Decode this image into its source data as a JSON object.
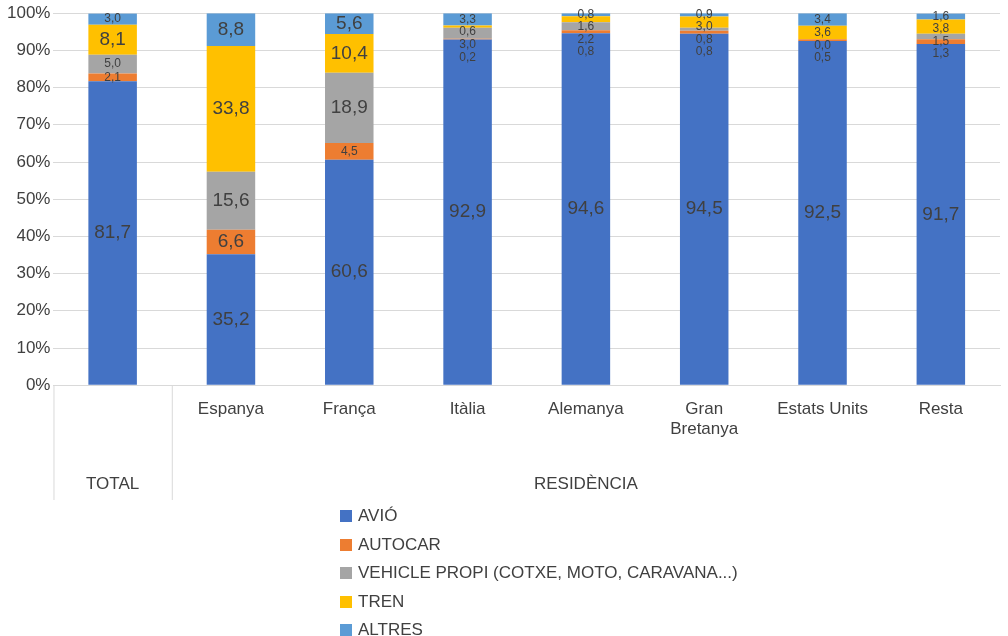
{
  "chart_data": {
    "type": "bar",
    "stacked": true,
    "categories": [
      null,
      "Espanya",
      "França",
      "Itàlia",
      "Alemanya",
      "Gran Bretanya",
      "Estats Units",
      "Resta"
    ],
    "annotations": [
      "TOTAL",
      "RESIDÈNCIA"
    ],
    "series": [
      {
        "name": "AVIÓ",
        "color": "#4472c4",
        "values": [
          81.7,
          35.2,
          60.6,
          92.9,
          94.6,
          94.5,
          92.5,
          91.7
        ],
        "value_labels": [
          "81,7",
          "35,2",
          "60,6",
          "92,9",
          "94,6",
          "94,5",
          "92,5",
          "91,7"
        ]
      },
      {
        "name": "AUTOCAR",
        "color": "#ed7d31",
        "values": [
          2.1,
          6.6,
          4.5,
          0.2,
          0.8,
          0.8,
          0.5,
          1.3
        ],
        "value_labels": [
          "2,1",
          "6,6",
          "4,5",
          "0,2",
          "0,8",
          "0,8",
          "0,5",
          "1,3"
        ]
      },
      {
        "name": "VEHICLE PROPI (COTXE, MOTO, CARAVANA...)",
        "color": "#a5a5a5",
        "values": [
          5.0,
          15.6,
          18.9,
          3.0,
          2.2,
          0.8,
          0.0,
          1.5
        ],
        "value_labels": [
          "5,0",
          "15,6",
          "18,9",
          "3,0",
          "2,2",
          "0,8",
          "0,0",
          "1,5"
        ]
      },
      {
        "name": "TREN",
        "color": "#ffc000",
        "values": [
          8.1,
          33.8,
          10.4,
          0.6,
          1.6,
          3.0,
          3.6,
          3.8
        ],
        "value_labels": [
          "8,1",
          "33,8",
          "10,4",
          "0,6",
          "1,6",
          "3,0",
          "3,6",
          "3,8"
        ]
      },
      {
        "name": "ALTRES",
        "color": "#5b9bd5",
        "values": [
          3.0,
          8.8,
          5.6,
          3.3,
          0.8,
          0.9,
          3.4,
          1.6
        ],
        "value_labels": [
          "3,0",
          "8,8",
          "5,6",
          "3,3",
          "0,8",
          "0,9",
          "3,4",
          "1,6"
        ]
      }
    ],
    "ylim": [
      0,
      100
    ],
    "yticks": [
      {
        "value": 0,
        "label": "0%"
      },
      {
        "value": 10,
        "label": "10%"
      },
      {
        "value": 20,
        "label": "20%"
      },
      {
        "value": 30,
        "label": "30%"
      },
      {
        "value": 40,
        "label": "40%"
      },
      {
        "value": 50,
        "label": "50%"
      },
      {
        "value": 60,
        "label": "60%"
      },
      {
        "value": 70,
        "label": "70%"
      },
      {
        "value": 80,
        "label": "80%"
      },
      {
        "value": 90,
        "label": "90%"
      },
      {
        "value": 100,
        "label": "100%"
      }
    ],
    "grid": "y",
    "data_labels": true,
    "legend": "bottom"
  }
}
